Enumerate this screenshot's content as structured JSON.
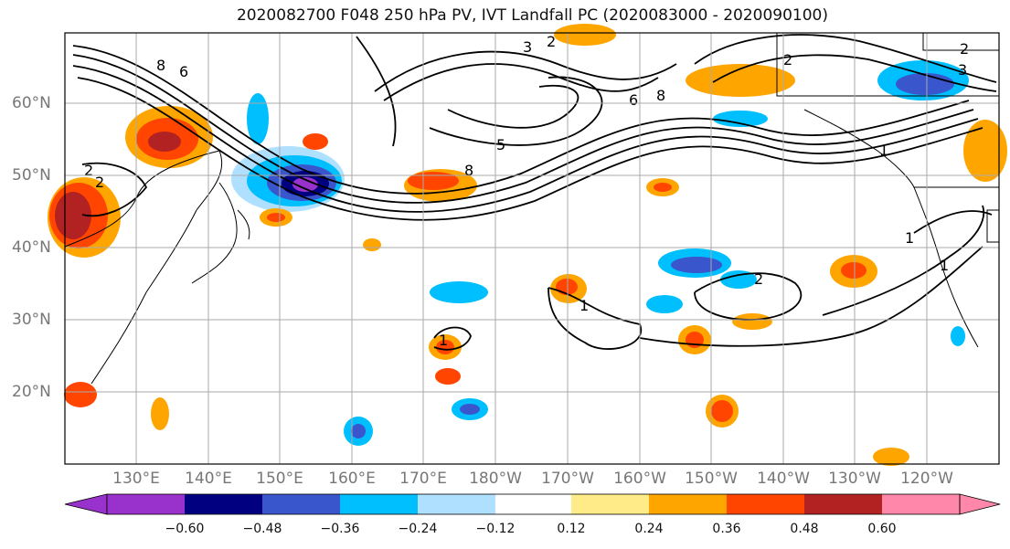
{
  "title": "2020082700 F048 250 hPa PV, IVT Landfall PC (2020083000 - 2020090100)",
  "lat_labels": [
    "60°N",
    "50°N",
    "40°N",
    "30°N",
    "20°N"
  ],
  "lon_labels": [
    "130°E",
    "140°E",
    "150°E",
    "160°E",
    "170°E",
    "180°W",
    "170°W",
    "160°W",
    "150°W",
    "140°W",
    "130°W",
    "120°W"
  ],
  "colorbar": {
    "ticks": [
      "−0.60",
      "−0.48",
      "−0.36",
      "−0.24",
      "−0.12",
      "0.12",
      "0.24",
      "0.36",
      "0.48",
      "0.60"
    ],
    "colors": [
      "#9932cc",
      "#000080",
      "#3a56cc",
      "#00bfff",
      "#b0e0ff",
      "#ffffff",
      "#ffeb88",
      "#ffa500",
      "#ff4500",
      "#b22222",
      "#ff88aa"
    ]
  },
  "contour_labels": [
    "2",
    "3",
    "2",
    "8",
    "6",
    "5",
    "8",
    "6",
    "8",
    "2",
    "3",
    "2",
    "1",
    "2",
    "1",
    "1",
    "2",
    "1",
    "1"
  ],
  "colors": {
    "grid": "#aaaaaa",
    "contour": "#000000",
    "axis_text": "#777777"
  }
}
